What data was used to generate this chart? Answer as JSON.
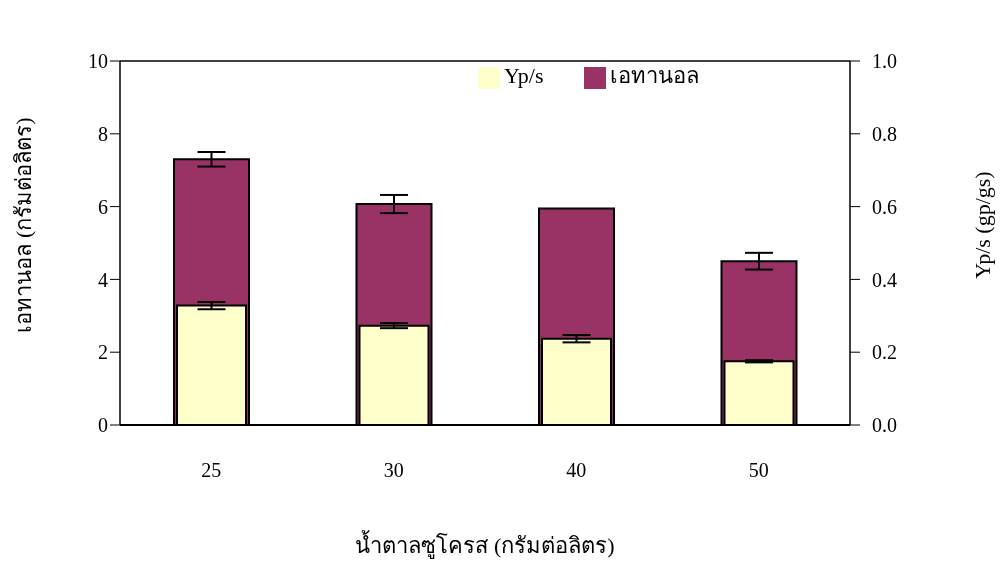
{
  "chart_data": {
    "type": "bar",
    "categories": [
      "25",
      "30",
      "40",
      "50"
    ],
    "xlabel": "น้ำตาลซูโครส (กรัมต่อลิตร)",
    "ylabel": "เอทานอล  (กรัมต่อลิตร)",
    "y2label": "Yp/s  (gp/gs)",
    "series": [
      {
        "name": "เอทานอล",
        "color": "#993366",
        "values": [
          7.3,
          6.07,
          5.95,
          4.5
        ],
        "errors": [
          0.2,
          0.25,
          null,
          0.23
        ]
      },
      {
        "name": "Yp/s",
        "color": "#ffffcc",
        "axis": "y2",
        "values": [
          0.328,
          0.273,
          0.237,
          0.175
        ],
        "errors": [
          0.01,
          0.007,
          0.01,
          0.003
        ]
      }
    ],
    "ylim": [
      0,
      10
    ],
    "yticks": [
      0,
      2,
      4,
      6,
      8,
      10
    ],
    "y2lim": [
      0,
      1
    ],
    "y2ticks": [
      {
        "value": 0,
        "label": "0.0"
      },
      {
        "value": 0.2,
        "label": "0.2"
      },
      {
        "value": 0.4,
        "label": "0.4"
      },
      {
        "value": 0.6,
        "label": "0.6"
      },
      {
        "value": 0.8,
        "label": "0.8"
      },
      {
        "value": 1,
        "label": "1.0"
      }
    ],
    "grid": false,
    "legend": "top right"
  }
}
